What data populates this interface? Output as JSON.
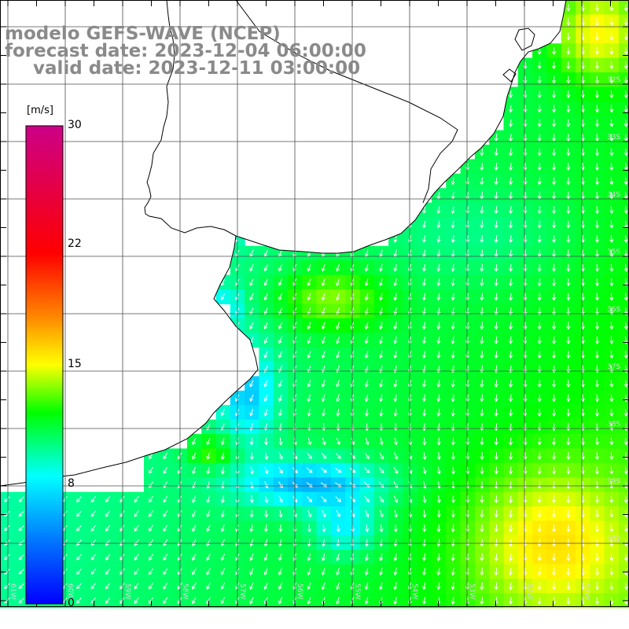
{
  "title": {
    "line1": "modelo GEFS-WAVE (NCEP)",
    "line2": "forecast date: 2023-12-04 06:00:00",
    "line3": "valid date: 2023-12-11 03:00:00"
  },
  "colorbar": {
    "unit": "[m/s]",
    "labels": [
      {
        "text": "30",
        "value": 30
      },
      {
        "text": "22",
        "value": 22
      },
      {
        "text": "15",
        "value": 15
      },
      {
        "text": "8",
        "value": 8
      },
      {
        "text": "0",
        "value": 0
      }
    ],
    "stops": [
      {
        "value": 0,
        "color": "#0000ff"
      },
      {
        "value": 4,
        "color": "#0077ff"
      },
      {
        "value": 8,
        "color": "#00ffff"
      },
      {
        "value": 12,
        "color": "#00ff00"
      },
      {
        "value": 15,
        "color": "#ffff00"
      },
      {
        "value": 18,
        "color": "#ff8800"
      },
      {
        "value": 22,
        "color": "#ff0000"
      },
      {
        "value": 30,
        "color": "#cc0088"
      }
    ]
  },
  "map": {
    "bottom_tick_labels": [
      "61W",
      "60W",
      "59W",
      "58W",
      "57W",
      "56W",
      "55W",
      "54W",
      "53W",
      "52W",
      "51W"
    ],
    "right_tick_labels": [
      "32S",
      "33S",
      "34S",
      "35S",
      "36S",
      "37S",
      "38S",
      "39S",
      "40S"
    ],
    "colors": {
      "land": "#ffffff",
      "coastline": "#000000",
      "grid": "#4d4d4d",
      "arrows": "#ffffff"
    }
  }
}
